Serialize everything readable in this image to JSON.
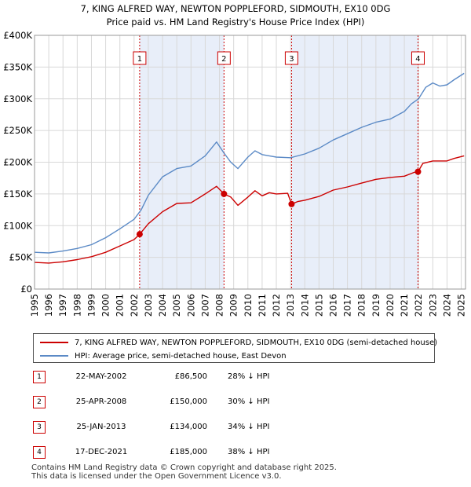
{
  "chart_data": {
    "type": "line",
    "title": "7, KING ALFRED WAY, NEWTON POPPLEFORD, SIDMOUTH, EX10 0DG",
    "subtitle": "Price paid vs. HM Land Registry's House Price Index (HPI)",
    "xlabel": "",
    "ylabel": "",
    "xlim": [
      1995,
      2025.3
    ],
    "ylim": [
      0,
      400000
    ],
    "y_ticks": [
      0,
      50000,
      100000,
      150000,
      200000,
      250000,
      300000,
      350000,
      400000
    ],
    "y_tick_labels": [
      "£0",
      "£50K",
      "£100K",
      "£150K",
      "£200K",
      "£250K",
      "£300K",
      "£350K",
      "£400K"
    ],
    "x_tick_labels": [
      "1995",
      "1996",
      "1997",
      "1998",
      "1999",
      "2000",
      "2001",
      "2002",
      "2003",
      "2004",
      "2005",
      "2006",
      "2007",
      "2008",
      "2009",
      "2010",
      "2011",
      "2012",
      "2013",
      "2014",
      "2015",
      "2016",
      "2017",
      "2018",
      "2019",
      "2020",
      "2021",
      "2022",
      "2023",
      "2024",
      "2025"
    ],
    "grid": true,
    "series": [
      {
        "name": "7, KING ALFRED WAY, NEWTON POPPLEFORD, SIDMOUTH, EX10 0DG (semi-detached house)",
        "color": "#cc0000",
        "points": [
          [
            1995,
            42000
          ],
          [
            1996,
            41000
          ],
          [
            1997,
            43000
          ],
          [
            1998,
            46500
          ],
          [
            1999,
            51000
          ],
          [
            2000,
            58000
          ],
          [
            2001,
            68000
          ],
          [
            2002,
            78000
          ],
          [
            2002.39,
            86500
          ],
          [
            2003,
            103000
          ],
          [
            2004,
            122000
          ],
          [
            2005,
            135000
          ],
          [
            2006,
            136000
          ],
          [
            2007,
            150000
          ],
          [
            2007.8,
            162000
          ],
          [
            2008.32,
            150000
          ],
          [
            2008.8,
            145000
          ],
          [
            2009.3,
            132000
          ],
          [
            2010,
            145000
          ],
          [
            2010.5,
            155000
          ],
          [
            2011,
            147000
          ],
          [
            2011.5,
            152000
          ],
          [
            2012,
            150000
          ],
          [
            2012.8,
            151000
          ],
          [
            2013.07,
            134000
          ],
          [
            2013.5,
            138000
          ],
          [
            2014,
            140000
          ],
          [
            2015,
            146000
          ],
          [
            2016,
            156000
          ],
          [
            2017,
            161000
          ],
          [
            2018,
            167000
          ],
          [
            2019,
            173000
          ],
          [
            2020,
            176000
          ],
          [
            2021,
            178000
          ],
          [
            2021.7,
            184000
          ],
          [
            2021.96,
            185000
          ],
          [
            2022.3,
            198000
          ],
          [
            2023,
            202000
          ],
          [
            2024,
            202000
          ],
          [
            2024.5,
            206000
          ],
          [
            2025.2,
            210000
          ]
        ]
      },
      {
        "name": "HPI: Average price, semi-detached house, East Devon",
        "color": "#5b8ac6",
        "points": [
          [
            1995,
            58000
          ],
          [
            1996,
            57000
          ],
          [
            1997,
            60000
          ],
          [
            1998,
            64000
          ],
          [
            1999,
            70000
          ],
          [
            2000,
            81000
          ],
          [
            2001,
            95000
          ],
          [
            2002,
            110000
          ],
          [
            2002.5,
            125000
          ],
          [
            2003,
            148000
          ],
          [
            2004,
            177000
          ],
          [
            2005,
            190000
          ],
          [
            2006,
            194000
          ],
          [
            2007,
            210000
          ],
          [
            2007.8,
            232000
          ],
          [
            2008.3,
            215000
          ],
          [
            2008.8,
            200000
          ],
          [
            2009.3,
            190000
          ],
          [
            2010,
            208000
          ],
          [
            2010.5,
            218000
          ],
          [
            2011,
            212000
          ],
          [
            2011.5,
            210000
          ],
          [
            2012,
            208000
          ],
          [
            2013,
            207000
          ],
          [
            2014,
            213000
          ],
          [
            2015,
            222000
          ],
          [
            2016,
            235000
          ],
          [
            2017,
            245000
          ],
          [
            2018,
            255000
          ],
          [
            2019,
            263000
          ],
          [
            2020,
            268000
          ],
          [
            2021,
            280000
          ],
          [
            2021.5,
            292000
          ],
          [
            2022,
            300000
          ],
          [
            2022.5,
            318000
          ],
          [
            2023,
            325000
          ],
          [
            2023.5,
            320000
          ],
          [
            2024,
            322000
          ],
          [
            2024.5,
            330000
          ],
          [
            2025.2,
            340000
          ]
        ]
      }
    ],
    "sales": [
      {
        "num": "1",
        "x": 2002.39,
        "price": 86500,
        "date": "22-MAY-2002",
        "price_label": "£86,500",
        "hpi": "28% ↓ HPI"
      },
      {
        "num": "2",
        "x": 2008.32,
        "price": 150000,
        "date": "25-APR-2008",
        "price_label": "£150,000",
        "hpi": "30% ↓ HPI"
      },
      {
        "num": "3",
        "x": 2013.07,
        "price": 134000,
        "date": "25-JAN-2013",
        "price_label": "£134,000",
        "hpi": "34% ↓ HPI"
      },
      {
        "num": "4",
        "x": 2021.96,
        "price": 185000,
        "date": "17-DEC-2021",
        "price_label": "£185,000",
        "hpi": "38% ↓ HPI"
      }
    ],
    "legend": [
      "7, KING ALFRED WAY, NEWTON POPPLEFORD, SIDMOUTH, EX10 0DG (semi-detached house)",
      "HPI: Average price, semi-detached house, East Devon"
    ]
  },
  "footer": {
    "line1": "Contains HM Land Registry data © Crown copyright and database right 2025.",
    "line2": "This data is licensed under the Open Government Licence v3.0."
  }
}
